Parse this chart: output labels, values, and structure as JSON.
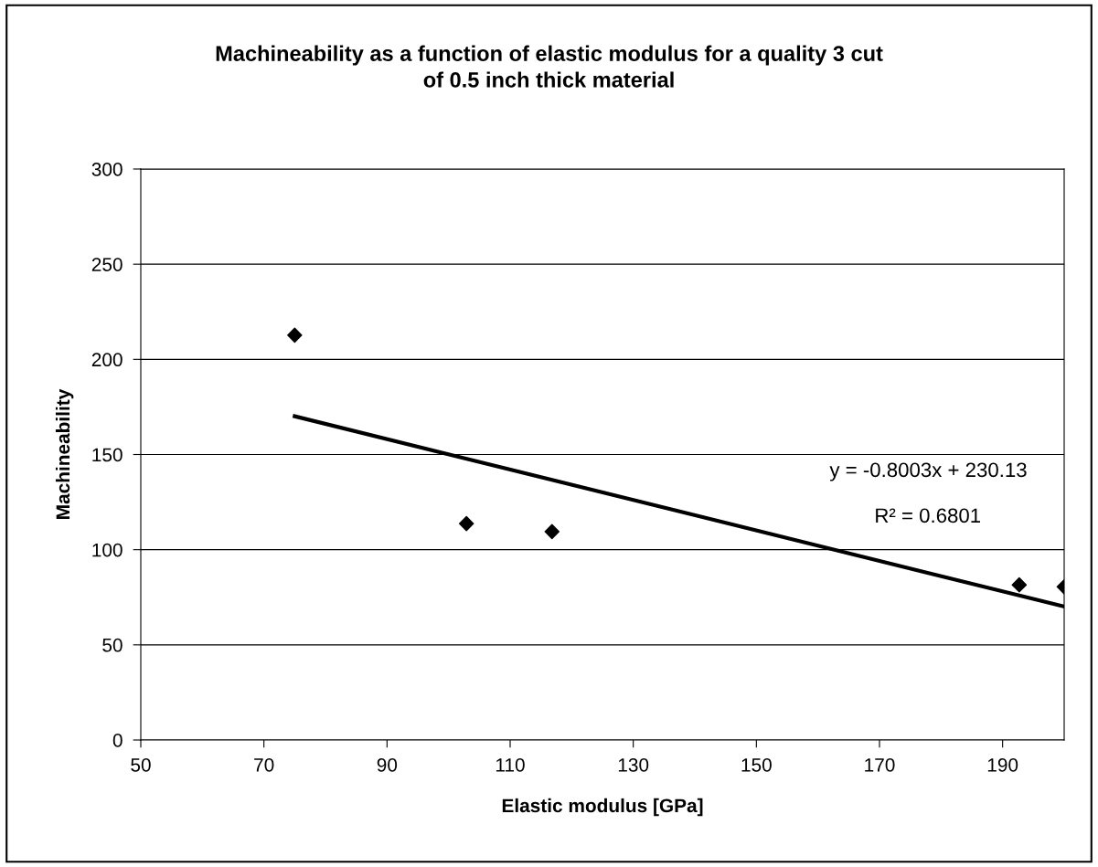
{
  "chart_data": {
    "type": "scatter",
    "title": "Machineability as a function of elastic modulus for a quality 3 cut\nof 0.5 inch thick material",
    "xlabel": "Elastic modulus [GPa]",
    "ylabel": "Machineability",
    "series": [
      {
        "color": "#000000",
        "marker": "diamond",
        "x": [
          75,
          102.9,
          116.8,
          192.7,
          200
        ],
        "values": [
          212.7,
          113.7,
          109.5,
          81.5,
          80.5
        ]
      },
      {
        "type": "line",
        "color": "#000000",
        "marker": "none",
        "line_style": "solid",
        "x": [
          75,
          200
        ],
        "values": [
          170.1,
          70.1
        ]
      }
    ],
    "annotations": [
      "y = -0.8003x + 230.13",
      "R² = 0.6801"
    ],
    "xlim": [
      50,
      200
    ],
    "xticks": [
      50,
      70,
      90,
      110,
      130,
      150,
      170,
      190
    ],
    "ylim": [
      0,
      300
    ],
    "yticks": [
      0,
      50,
      100,
      150,
      200,
      250,
      300
    ],
    "grid": "y",
    "legend": false
  }
}
